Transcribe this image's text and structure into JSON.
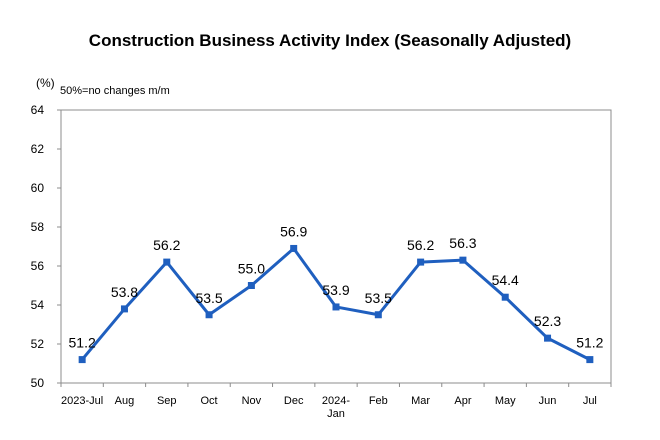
{
  "chart_data": {
    "type": "line",
    "title": "Construction Business Activity Index (Seasonally Adjusted)",
    "y_unit": "(%)",
    "annotation": "50%=no changes m/m",
    "ylim": [
      50,
      64
    ],
    "y_ticks": [
      50,
      52,
      54,
      56,
      58,
      60,
      62,
      64
    ],
    "grid": false,
    "categories": [
      [
        "2023-Jul"
      ],
      [
        "Aug"
      ],
      [
        "Sep"
      ],
      [
        "Oct"
      ],
      [
        "Nov"
      ],
      [
        "Dec"
      ],
      [
        "2024-",
        "Jan"
      ],
      [
        "Feb"
      ],
      [
        "Mar"
      ],
      [
        "Apr"
      ],
      [
        "May"
      ],
      [
        "Jun"
      ],
      [
        "Jul"
      ]
    ],
    "series": [
      {
        "values": [
          51.2,
          53.8,
          56.2,
          53.5,
          55.0,
          56.9,
          53.9,
          53.5,
          56.2,
          56.3,
          54.4,
          52.3,
          51.2
        ],
        "labels": [
          "51.2",
          "53.8",
          "56.2",
          "53.5",
          "55.0",
          "56.9",
          "53.9",
          "53.5",
          "56.2",
          "56.3",
          "54.4",
          "52.3",
          "51.2"
        ],
        "color": "#1F5FBF"
      }
    ]
  }
}
